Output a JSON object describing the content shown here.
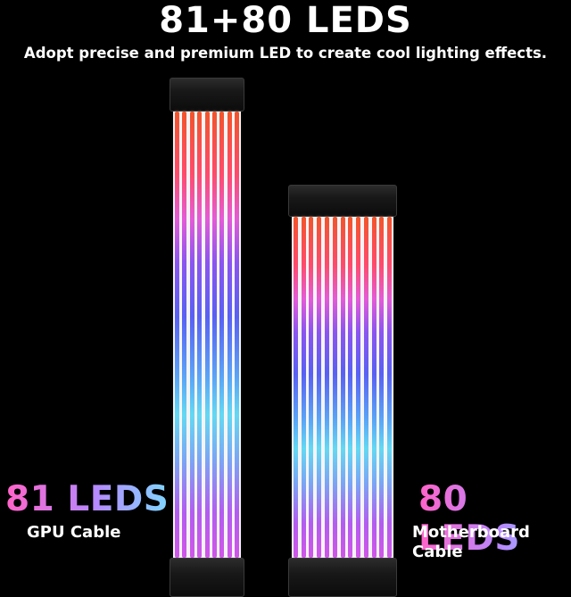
{
  "headline": "81+80 LEDS",
  "subline": "Adopt precise and premium LED to create cool lighting effects.",
  "gpu": {
    "count": "81 LEDS",
    "name": "GPU Cable"
  },
  "motherboard": {
    "count": "80 LEDS",
    "name": "Motherboard Cable"
  },
  "colors": {
    "background": "#000000",
    "connector": "#1a1a1a",
    "strand_gradient": [
      "#f2542a",
      "#ff4b6b",
      "#e45bd6",
      "#8a55f0",
      "#5960f3",
      "#5aa7f6",
      "#63d9f2",
      "#b35cf0"
    ]
  }
}
